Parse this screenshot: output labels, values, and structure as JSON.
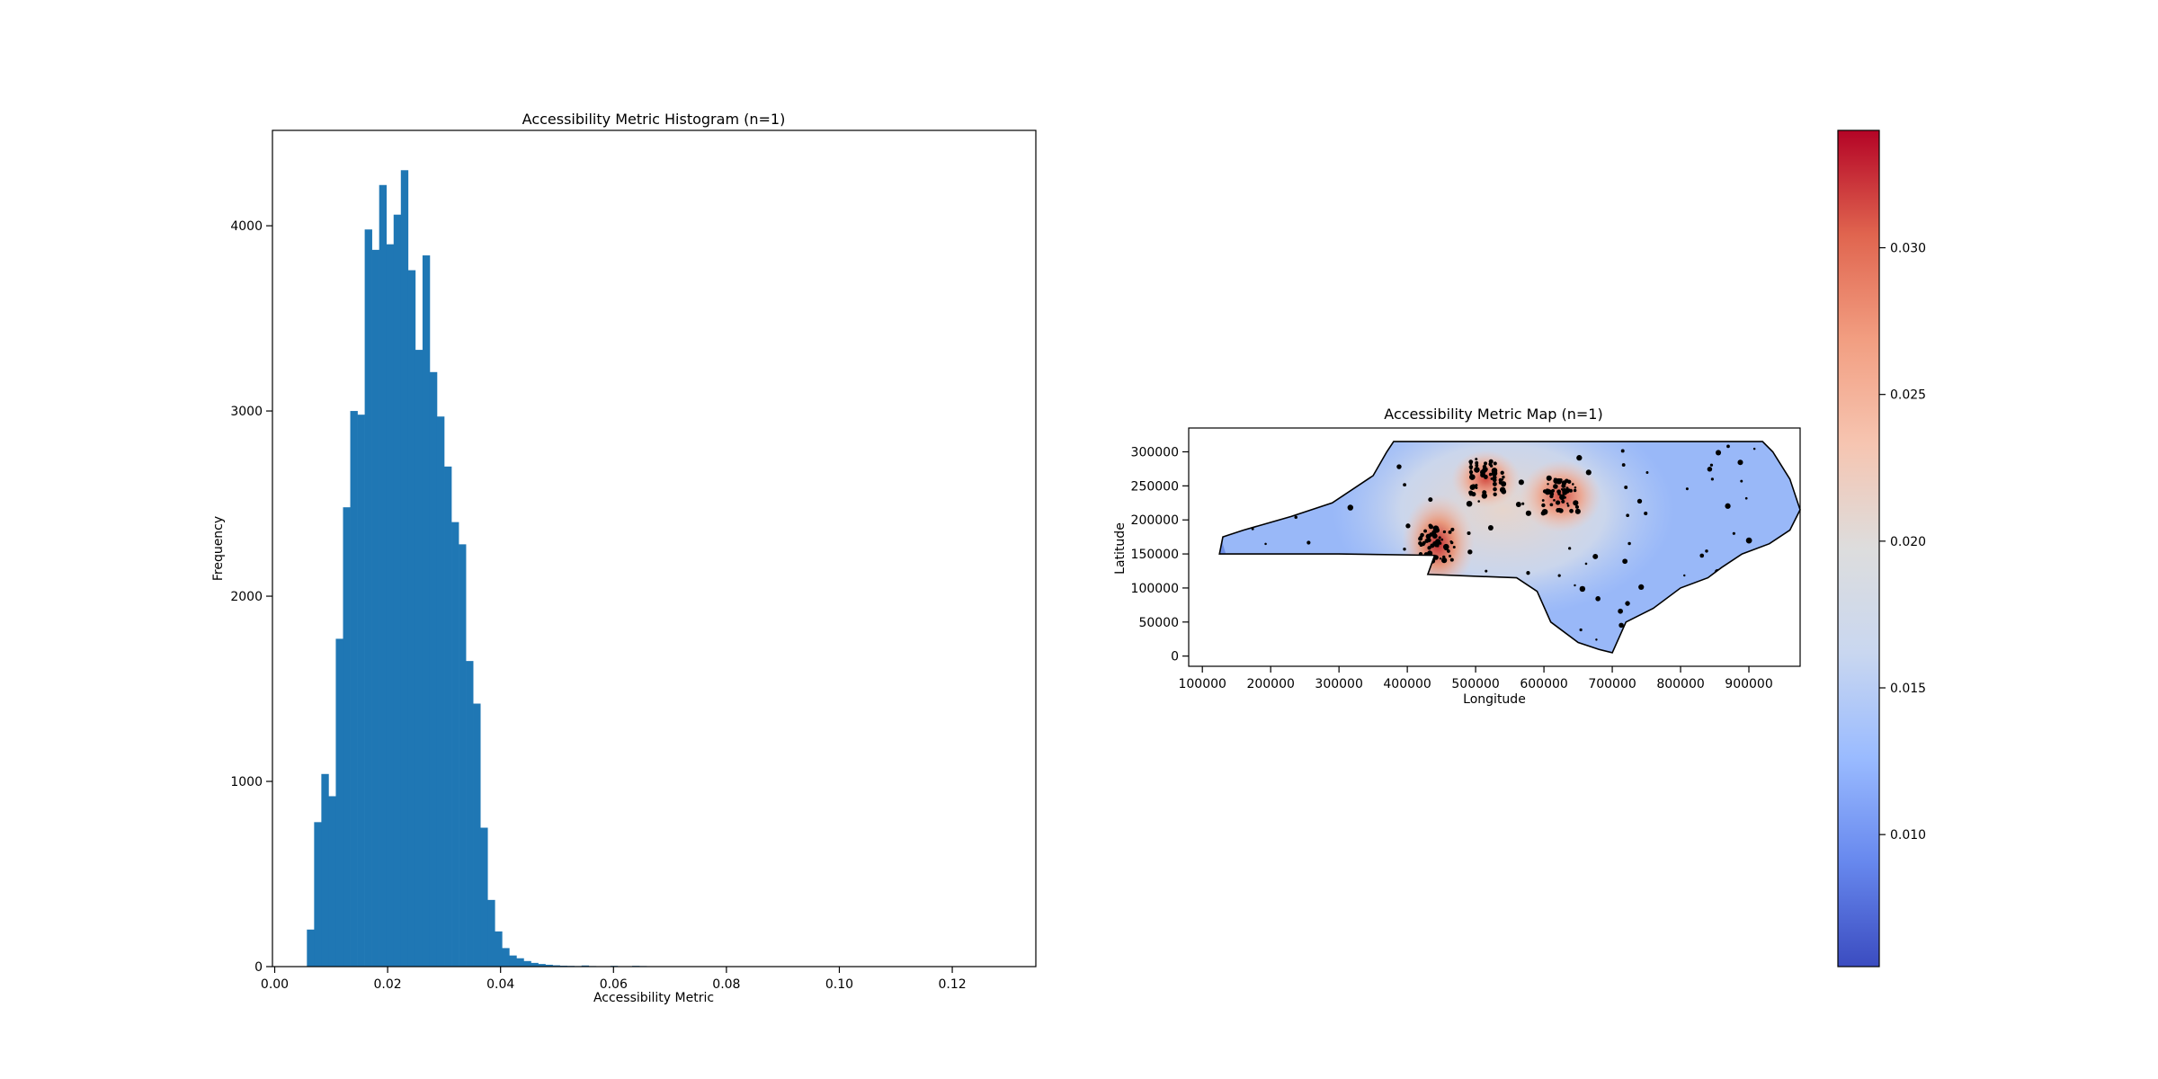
{
  "chart_data": [
    {
      "type": "bar",
      "title": "Accessibility Metric Histogram (n=1)",
      "xlabel": "Accessibility Metric",
      "ylabel": "Frequency",
      "xlim": [
        -0.0004,
        0.1348
      ],
      "ylim": [
        0,
        4515
      ],
      "xticks": [
        "0.00",
        "0.02",
        "0.04",
        "0.06",
        "0.08",
        "0.10",
        "0.12"
      ],
      "xtick_values": [
        0.0,
        0.02,
        0.04,
        0.06,
        0.08,
        0.1,
        0.12
      ],
      "yticks": [
        "0",
        "1000",
        "2000",
        "3000",
        "4000"
      ],
      "ytick_values": [
        0,
        1000,
        2000,
        3000,
        4000
      ],
      "bin_start": 0.0057,
      "bin_width": 0.00128,
      "values": [
        200,
        780,
        1040,
        920,
        1770,
        2480,
        3000,
        2980,
        3980,
        3870,
        4220,
        3900,
        4060,
        4300,
        3760,
        3330,
        3840,
        3210,
        2970,
        2700,
        2400,
        2280,
        1650,
        1420,
        750,
        360,
        190,
        100,
        60,
        45,
        30,
        20,
        14,
        10,
        7,
        5,
        4,
        3,
        6,
        3,
        2,
        2,
        4,
        2,
        2,
        4,
        3,
        2,
        1,
        1,
        1,
        1,
        1,
        1,
        1,
        1,
        1,
        1,
        1,
        1,
        1,
        1,
        1,
        1,
        1,
        1,
        1,
        1,
        1,
        1,
        1,
        1,
        1,
        1,
        1,
        1,
        1,
        1,
        1,
        1,
        1,
        1,
        1,
        1,
        1,
        1,
        1,
        1,
        1,
        1,
        1,
        1,
        1,
        1,
        1,
        1,
        1,
        1,
        1,
        1
      ],
      "color": "#1f77b4",
      "grid": false
    },
    {
      "type": "heatmap",
      "title": "Accessibility Metric Map (n=1)",
      "xlabel": "Longitude",
      "ylabel": "Latitude",
      "xlim": [
        80000,
        975000
      ],
      "ylim": [
        -15000,
        335000
      ],
      "xticks": [
        "100000",
        "200000",
        "300000",
        "400000",
        "500000",
        "600000",
        "700000",
        "800000",
        "900000"
      ],
      "xtick_values": [
        100000,
        200000,
        300000,
        400000,
        500000,
        600000,
        700000,
        800000,
        900000
      ],
      "yticks": [
        "0",
        "50000",
        "100000",
        "150000",
        "200000",
        "250000",
        "300000"
      ],
      "ytick_values": [
        0,
        50000,
        100000,
        150000,
        200000,
        250000,
        300000
      ],
      "outline": [
        [
          125000,
          150000
        ],
        [
          130000,
          175000
        ],
        [
          160000,
          185000
        ],
        [
          230000,
          205000
        ],
        [
          290000,
          225000
        ],
        [
          350000,
          265000
        ],
        [
          370000,
          300000
        ],
        [
          380000,
          315000
        ],
        [
          920000,
          315000
        ],
        [
          935000,
          300000
        ],
        [
          960000,
          260000
        ],
        [
          975000,
          215000
        ],
        [
          960000,
          185000
        ],
        [
          930000,
          165000
        ],
        [
          890000,
          150000
        ],
        [
          860000,
          130000
        ],
        [
          840000,
          115000
        ],
        [
          800000,
          100000
        ],
        [
          760000,
          70000
        ],
        [
          720000,
          50000
        ],
        [
          700000,
          5000
        ],
        [
          680000,
          10000
        ],
        [
          650000,
          20000
        ],
        [
          610000,
          50000
        ],
        [
          590000,
          95000
        ],
        [
          560000,
          115000
        ],
        [
          430000,
          120000
        ],
        [
          440000,
          148000
        ],
        [
          300000,
          150000
        ],
        [
          230000,
          150000
        ]
      ],
      "hotspots": [
        {
          "x": 445000,
          "y": 165000,
          "value": 0.034
        },
        {
          "x": 625000,
          "y": 235000,
          "value": 0.031
        },
        {
          "x": 515000,
          "y": 260000,
          "value": 0.028
        }
      ],
      "grid": false
    },
    {
      "type": "colorbar",
      "cmap": "coolwarm",
      "range": [
        0.0055,
        0.034
      ],
      "ticks": [
        "0.010",
        "0.015",
        "0.020",
        "0.025",
        "0.030"
      ],
      "tick_values": [
        0.01,
        0.015,
        0.02,
        0.025,
        0.03
      ],
      "colors": [
        "#3b4cc0",
        "#6788ee",
        "#9abbff",
        "#c9d7f0",
        "#dddddd",
        "#f6c5b1",
        "#f29e81",
        "#e0654f",
        "#b40426"
      ]
    }
  ]
}
